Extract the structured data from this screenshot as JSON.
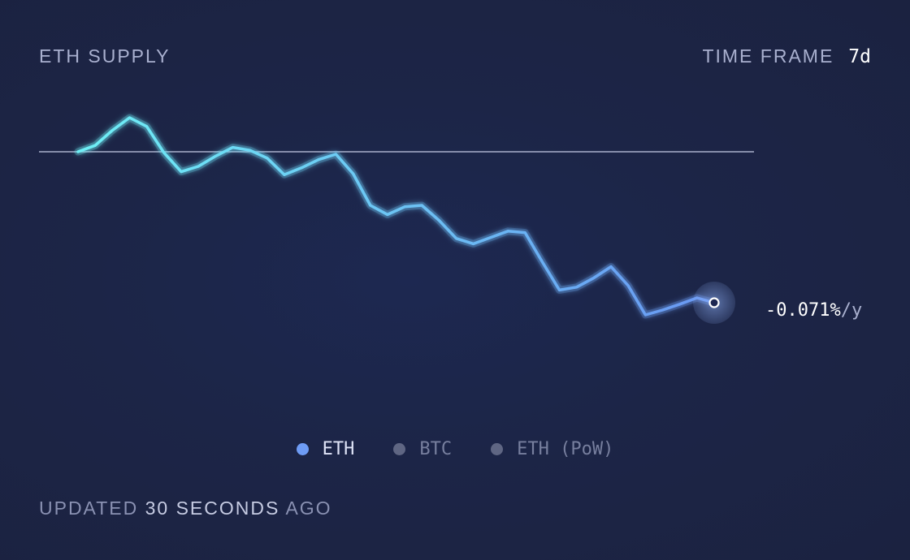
{
  "header": {
    "title": "ETH SUPPLY",
    "timeframe_label": "TIME FRAME",
    "timeframe_value": "7d"
  },
  "current_rate": {
    "value": "-0.071%",
    "unit": "/y"
  },
  "legend": [
    {
      "label": "ETH",
      "active": true
    },
    {
      "label": "BTC",
      "active": false
    },
    {
      "label": "ETH (PoW)",
      "active": false
    }
  ],
  "footer": {
    "prefix": "UPDATED",
    "amount": "30",
    "unit": "SECONDS",
    "suffix": "AGO"
  },
  "colors": {
    "line_start": "#6ef0f6",
    "line_end": "#6a97f3",
    "baseline": "#aab0cc",
    "background": "#1c2547"
  },
  "chart_data": {
    "type": "line",
    "series": [
      {
        "name": "ETH",
        "values": [
          0.0,
          0.013,
          0.044,
          0.07,
          0.052,
          -0.002,
          -0.041,
          -0.03,
          -0.009,
          0.009,
          0.003,
          -0.013,
          -0.047,
          -0.033,
          -0.016,
          -0.005,
          -0.045,
          -0.11,
          -0.129,
          -0.113,
          -0.11,
          -0.141,
          -0.178,
          -0.189,
          -0.176,
          -0.163,
          -0.166,
          -0.226,
          -0.284,
          -0.278,
          -0.259,
          -0.236,
          -0.275,
          -0.335,
          -0.325,
          -0.313,
          -0.3,
          -0.31
        ]
      }
    ],
    "baseline": 0,
    "start_label_position": "left",
    "end_value_label": "-0.071%/y",
    "grid": false,
    "legend_position": "bottom-center"
  }
}
